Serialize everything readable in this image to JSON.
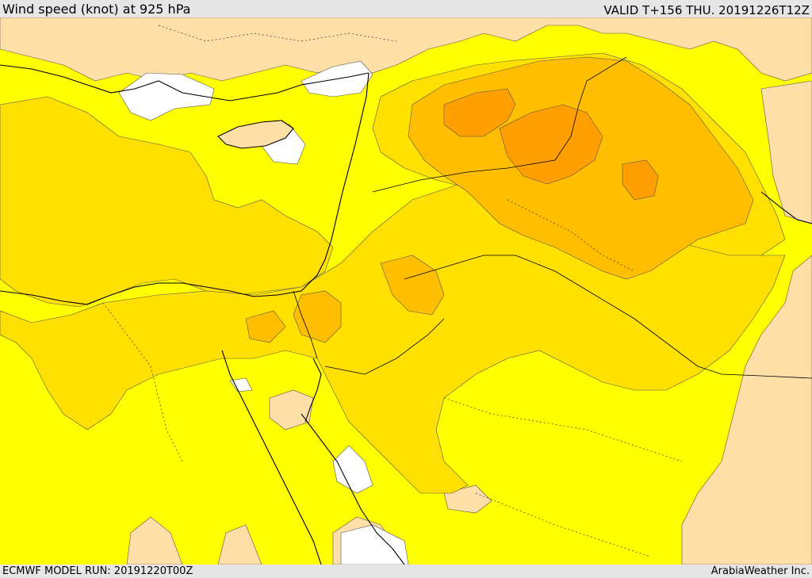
{
  "header": {
    "title": "Wind speed (knot) at 925 hPa",
    "valid": "VALID T+156 THU. 20191226T12Z"
  },
  "footer": {
    "model_run": "ECMWF MODEL RUN: 20191220T00Z",
    "credit": "ArabiaWeather Inc."
  },
  "map": {
    "field": "wind speed",
    "level": "925 hPa",
    "colors": {
      "calm_white": "#ffffff",
      "light_tan": "#ffdfa8",
      "yellow": "#ffff00",
      "gold": "#ffe000",
      "amber": "#ffbf00",
      "orange": "#ff9f00",
      "background": "#e6e6e6",
      "coastline": "#000000",
      "border": "#000000"
    }
  }
}
